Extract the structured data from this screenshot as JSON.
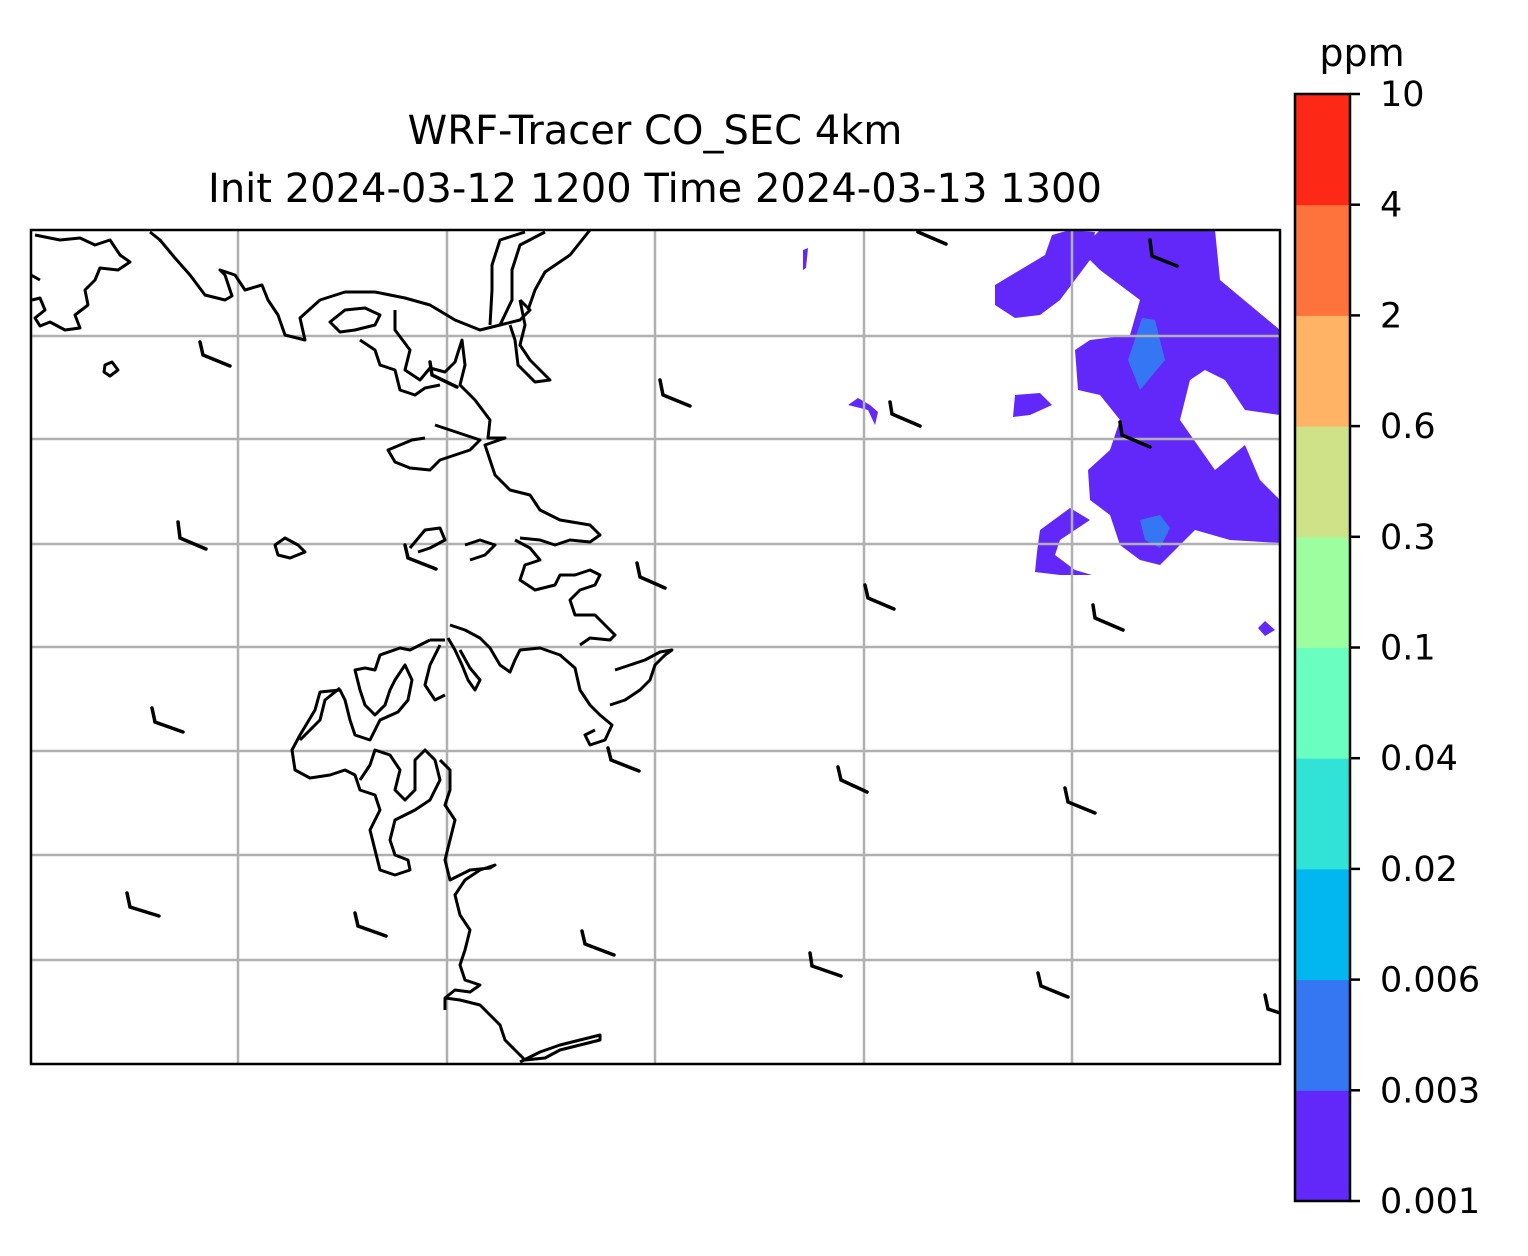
{
  "title": {
    "line1": "WRF-Tracer CO_SEC 4km",
    "line2": "Init 2024-03-12 1200 Time 2024-03-13 1300"
  },
  "colorbar": {
    "unit": "ppm",
    "levels": [
      "0.001",
      "0.003",
      "0.006",
      "0.02",
      "0.04",
      "0.1",
      "0.3",
      "0.6",
      "2",
      "4",
      "10"
    ],
    "colors": [
      "#6228fa",
      "#3577f2",
      "#02b7ef",
      "#31e2d7",
      "#6afec0",
      "#9cfe9f",
      "#cfe287",
      "#feb464",
      "#fe723c",
      "#fe2817"
    ]
  },
  "map": {
    "gridlines": true,
    "coastline_color": "#000000",
    "tracer_fill_color": "#6228fa",
    "tracer_peak_color": "#3577f2"
  }
}
